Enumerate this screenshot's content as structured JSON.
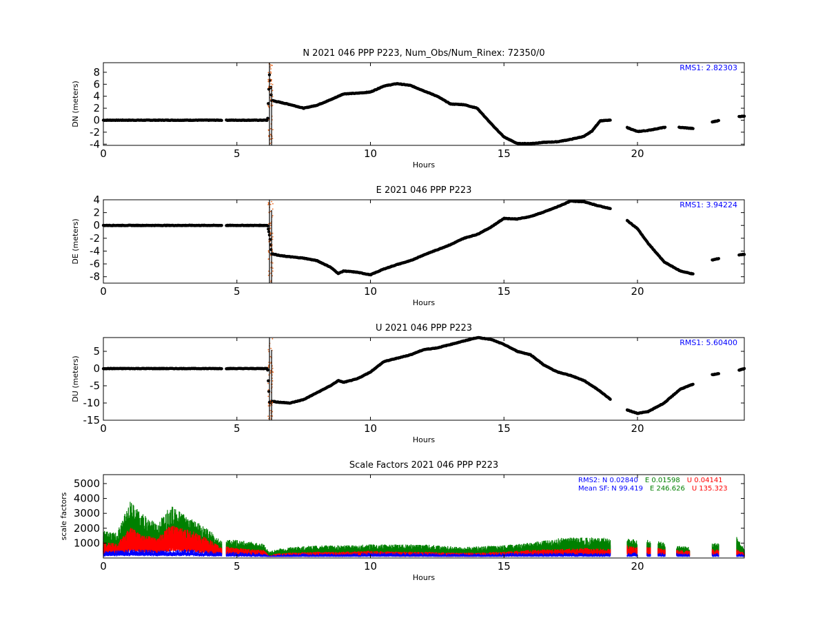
{
  "chart_data": [
    {
      "type": "scatter",
      "title": "N 2021 046 PPP  P223, Num_Obs/Num_Rinex: 72350/0",
      "xlabel": "Hours",
      "ylabel": "DN (meters)",
      "xlim": [
        0,
        24
      ],
      "ylim": [
        -4.2,
        9.6
      ],
      "xticks": [
        0,
        5,
        10,
        15,
        20
      ],
      "yticks": [
        -4,
        -2,
        0,
        2,
        4,
        6,
        8
      ],
      "annotation": "RMS1:  2.82303",
      "colors": {
        "points": "#000000",
        "outliers": "#e8661d",
        "annotation": "#0000ff"
      },
      "gaps": [
        [
          4.45,
          4.6
        ],
        [
          19.0,
          19.6
        ],
        [
          20.3,
          20.35
        ],
        [
          21.05,
          21.55
        ],
        [
          22.1,
          22.8
        ],
        [
          23.05,
          23.8
        ]
      ],
      "series": [
        {
          "x": [
            0,
            6.15,
            6.22,
            6.3,
            6.6,
            7.0,
            7.5,
            8.0,
            8.5,
            9.0,
            9.5,
            10.0,
            10.5,
            11.0,
            11.5,
            12.0,
            12.5,
            13.0,
            13.5,
            14.0,
            14.5,
            15.0,
            15.5,
            16.0,
            16.5,
            17.0,
            17.5,
            18.0,
            18.3,
            18.6,
            19.0,
            19.6,
            20.0,
            20.4,
            21.0,
            21.6,
            22.1,
            22.8,
            23.0,
            23.8,
            24.0
          ],
          "y": [
            0,
            0,
            7.8,
            3.3,
            3.0,
            2.6,
            2.0,
            2.5,
            3.4,
            4.4,
            4.5,
            4.7,
            5.7,
            6.1,
            5.8,
            4.9,
            4.0,
            2.7,
            2.6,
            2.0,
            -0.5,
            -2.8,
            -3.9,
            -3.9,
            -3.7,
            -3.6,
            -3.2,
            -2.7,
            -1.8,
            -0.1,
            0,
            -1.2,
            -1.9,
            -1.7,
            -1.2,
            -1.2,
            -1.4,
            -0.3,
            -0.1,
            0.6,
            0.7
          ]
        }
      ]
    },
    {
      "type": "scatter",
      "title": "E 2021 046 PPP  P223",
      "xlabel": "Hours",
      "ylabel": "DE (meters)",
      "xlim": [
        0,
        24
      ],
      "ylim": [
        -9,
        4
      ],
      "xticks": [
        0,
        5,
        10,
        15,
        20
      ],
      "yticks": [
        -8,
        -6,
        -4,
        -2,
        0,
        2,
        4
      ],
      "annotation": "RMS1:  3.94224",
      "colors": {
        "points": "#000000",
        "outliers": "#e8661d",
        "annotation": "#0000ff"
      },
      "gaps": [
        [
          4.45,
          4.6
        ],
        [
          19.0,
          19.6
        ],
        [
          22.1,
          22.8
        ],
        [
          23.05,
          23.8
        ]
      ],
      "series": [
        {
          "x": [
            0,
            6.15,
            6.22,
            6.3,
            6.6,
            7.0,
            7.5,
            8.0,
            8.5,
            8.8,
            9.0,
            9.5,
            10.0,
            10.5,
            11.0,
            11.5,
            12.0,
            12.5,
            13.0,
            13.5,
            14.0,
            14.5,
            15.0,
            15.5,
            16.0,
            16.5,
            17.0,
            17.5,
            18.0,
            18.5,
            19.0,
            19.6,
            20.0,
            20.4,
            21.0,
            21.6,
            22.1,
            22.8,
            23.0,
            23.8,
            24.0
          ],
          "y": [
            0,
            0,
            -1.5,
            -4.4,
            -4.7,
            -4.9,
            -5.1,
            -5.5,
            -6.5,
            -7.5,
            -7.1,
            -7.3,
            -7.7,
            -6.8,
            -6.1,
            -5.5,
            -4.6,
            -3.8,
            -3.0,
            -2.0,
            -1.4,
            -0.3,
            1.1,
            1.0,
            1.4,
            2.1,
            2.9,
            3.8,
            3.7,
            3.1,
            2.6,
            0.8,
            -0.5,
            -2.8,
            -5.7,
            -7.1,
            -7.6,
            -5.4,
            -5.2,
            -4.6,
            -4.5
          ]
        }
      ]
    },
    {
      "type": "scatter",
      "title": "U 2021 046 PPP  P223",
      "xlabel": "Hours",
      "ylabel": "DU (meters)",
      "xlim": [
        0,
        24
      ],
      "ylim": [
        -15,
        9
      ],
      "xticks": [
        0,
        5,
        10,
        15,
        20
      ],
      "yticks": [
        -15,
        -10,
        -5,
        0,
        5
      ],
      "annotation": "RMS1:  5.60400",
      "colors": {
        "points": "#000000",
        "outliers": "#e8661d",
        "annotation": "#0000ff"
      },
      "gaps": [
        [
          4.45,
          4.6
        ],
        [
          19.0,
          19.6
        ],
        [
          22.1,
          22.8
        ],
        [
          23.05,
          23.8
        ]
      ],
      "series": [
        {
          "x": [
            0,
            6.15,
            6.22,
            6.3,
            6.6,
            7.0,
            7.5,
            8.0,
            8.5,
            8.8,
            9.0,
            9.5,
            10.0,
            10.5,
            11.0,
            11.5,
            12.0,
            12.5,
            13.0,
            13.5,
            14.0,
            14.5,
            15.0,
            15.5,
            16.0,
            16.5,
            17.0,
            17.5,
            18.0,
            18.5,
            19.0,
            19.6,
            20.0,
            20.4,
            21.0,
            21.6,
            22.1,
            22.8,
            23.0,
            23.8,
            24.0
          ],
          "y": [
            0,
            0,
            -10.0,
            -9.5,
            -9.8,
            -10.0,
            -9.0,
            -7.0,
            -5.0,
            -3.5,
            -4.0,
            -3.0,
            -1.0,
            2.0,
            3.0,
            4.0,
            5.5,
            6.0,
            7.0,
            8.0,
            9.0,
            8.5,
            7.0,
            5.0,
            4.0,
            1.0,
            -1.0,
            -2.0,
            -3.5,
            -6.0,
            -9.0,
            -12.0,
            -13.0,
            -12.5,
            -10.0,
            -6.0,
            -4.5,
            -1.8,
            -1.5,
            -0.5,
            0
          ]
        }
      ]
    },
    {
      "type": "scatter",
      "title": "Scale Factors 2021 046 PPP  P223",
      "xlabel": "Hours",
      "ylabel": "scale factors",
      "xlim": [
        0,
        24
      ],
      "ylim": [
        0,
        5600
      ],
      "xticks": [
        0,
        5,
        10,
        15,
        20
      ],
      "yticks": [
        1000,
        2000,
        3000,
        4000,
        5000
      ],
      "gaps": [
        [
          4.45,
          4.6
        ],
        [
          19.0,
          19.6
        ],
        [
          20.0,
          20.35
        ],
        [
          20.5,
          20.75
        ],
        [
          21.05,
          21.45
        ],
        [
          21.95,
          22.8
        ],
        [
          23.05,
          23.7
        ]
      ],
      "legend": [
        {
          "parts": [
            {
              "text": "RMS2: N  0.02840",
              "color": "#0000ff"
            },
            {
              "text": "E  0.01598",
              "color": "#008000"
            },
            {
              "text": "U  0.04141",
              "color": "#ff0000"
            }
          ]
        },
        {
          "parts": [
            {
              "text": "Mean SF: N  99.419",
              "color": "#0000ff"
            },
            {
              "text": "E 246.626",
              "color": "#008000"
            },
            {
              "text": "U 135.323",
              "color": "#ff0000"
            }
          ]
        }
      ],
      "series": [
        {
          "color": "#008000",
          "x": [
            0,
            0.5,
            1.0,
            1.5,
            2.0,
            2.5,
            3.0,
            3.5,
            4.0,
            4.4,
            4.6,
            5.0,
            5.5,
            6.0,
            6.2,
            6.5,
            7.0,
            8.0,
            9.0,
            10.0,
            11.0,
            12.0,
            13.0,
            13.5,
            14.0,
            15.0,
            16.0,
            17.0,
            18.0,
            19.0,
            19.6,
            20.0,
            20.4,
            21.0,
            21.5,
            22.0,
            22.8,
            23.0,
            23.7,
            24.0
          ],
          "y": [
            1500,
            1400,
            3100,
            2400,
            1900,
            2900,
            2500,
            2000,
            1500,
            1000,
            1000,
            1000,
            900,
            800,
            350,
            500,
            600,
            700,
            700,
            750,
            750,
            750,
            650,
            600,
            650,
            700,
            850,
            1100,
            1150,
            1100,
            1100,
            1000,
            1000,
            900,
            700,
            600,
            900,
            800,
            1200,
            500
          ]
        },
        {
          "color": "#ff0000",
          "x": [
            0,
            0.5,
            1.0,
            1.5,
            2.0,
            2.5,
            3.0,
            3.5,
            4.0,
            4.4,
            4.6,
            5.0,
            5.5,
            6.0,
            6.2,
            6.5,
            7.0,
            8.0,
            9.0,
            10.0,
            11.0,
            12.0,
            13.0,
            13.5,
            14.0,
            15.0,
            16.0,
            17.0,
            18.0,
            19.0,
            19.6,
            20.0,
            20.4,
            21.0,
            21.5,
            22.0,
            22.8,
            23.0,
            23.7,
            24.0
          ],
          "y": [
            900,
            800,
            1700,
            1300,
            1100,
            1800,
            1700,
            1400,
            1000,
            600,
            650,
            550,
            500,
            450,
            150,
            250,
            300,
            350,
            350,
            400,
            350,
            350,
            300,
            300,
            300,
            350,
            450,
            500,
            550,
            500,
            700,
            600,
            600,
            550,
            450,
            400,
            500,
            500,
            500,
            300
          ]
        },
        {
          "color": "#0000ff",
          "x": [
            0,
            1.0,
            2.0,
            3.0,
            4.0,
            4.4,
            4.6,
            6.0,
            6.2,
            7.0,
            9.0,
            10.0,
            11.0,
            13.0,
            15.0,
            17.0,
            19.0,
            19.6,
            21.0,
            22.0,
            22.8,
            24.0
          ],
          "y": [
            400,
            500,
            450,
            500,
            400,
            350,
            350,
            300,
            150,
            250,
            250,
            300,
            300,
            250,
            280,
            300,
            280,
            300,
            300,
            250,
            300,
            250
          ]
        }
      ]
    }
  ]
}
